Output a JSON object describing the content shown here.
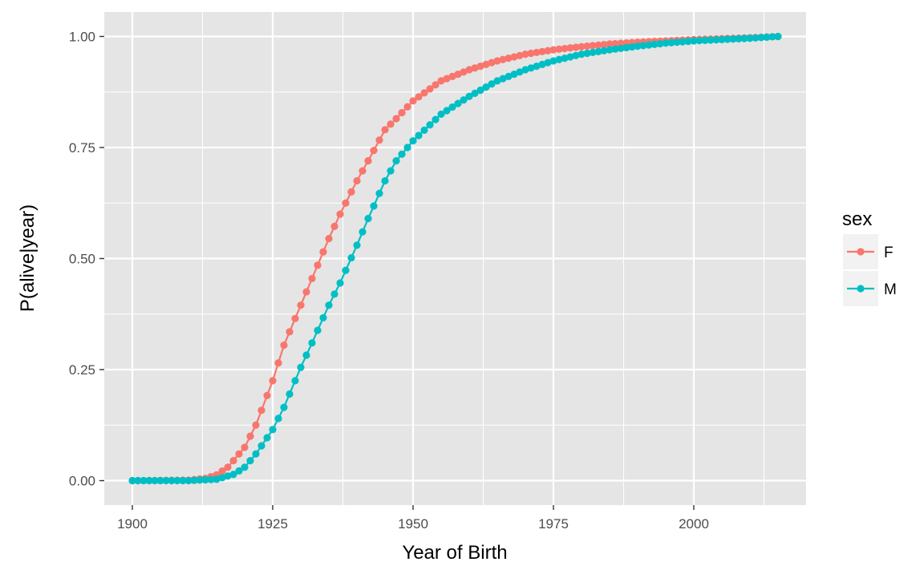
{
  "chart_data": {
    "type": "line",
    "title": "",
    "xlabel": "Year of Birth",
    "ylabel": "P(alive|year)",
    "xlim": [
      1895,
      2020
    ],
    "ylim": [
      -0.055,
      1.055
    ],
    "x_ticks": [
      1900,
      1925,
      1950,
      1975,
      2000
    ],
    "y_ticks": [
      0.0,
      0.25,
      0.5,
      0.75,
      1.0
    ],
    "x_tick_labels": [
      "1900",
      "1925",
      "1950",
      "1975",
      "2000"
    ],
    "y_tick_labels": [
      "0.00",
      "0.25",
      "0.50",
      "0.75",
      "1.00"
    ],
    "grid": true,
    "markers": true,
    "legend": {
      "title": "sex",
      "position": "right"
    },
    "x": {
      "start": 1900,
      "end": 2015,
      "step": 1
    },
    "series": [
      {
        "name": "F",
        "color": "#F8766D",
        "keypoints": [
          [
            1900,
            0.0
          ],
          [
            1910,
            0.001
          ],
          [
            1913,
            0.005
          ],
          [
            1915,
            0.013
          ],
          [
            1917,
            0.03
          ],
          [
            1920,
            0.075
          ],
          [
            1922,
            0.125
          ],
          [
            1925,
            0.225
          ],
          [
            1927,
            0.305
          ],
          [
            1930,
            0.395
          ],
          [
            1932,
            0.455
          ],
          [
            1935,
            0.545
          ],
          [
            1937,
            0.6
          ],
          [
            1940,
            0.675
          ],
          [
            1942,
            0.72
          ],
          [
            1945,
            0.79
          ],
          [
            1947,
            0.815
          ],
          [
            1950,
            0.855
          ],
          [
            1955,
            0.9
          ],
          [
            1960,
            0.925
          ],
          [
            1965,
            0.945
          ],
          [
            1970,
            0.96
          ],
          [
            1975,
            0.97
          ],
          [
            1980,
            0.977
          ],
          [
            1985,
            0.983
          ],
          [
            1990,
            0.987
          ],
          [
            1995,
            0.99
          ],
          [
            2000,
            0.993
          ],
          [
            2005,
            0.995
          ],
          [
            2010,
            0.997
          ],
          [
            2015,
            1.0
          ]
        ]
      },
      {
        "name": "M",
        "color": "#00BFC4",
        "keypoints": [
          [
            1900,
            0.0
          ],
          [
            1910,
            0.0
          ],
          [
            1915,
            0.003
          ],
          [
            1918,
            0.014
          ],
          [
            1920,
            0.03
          ],
          [
            1922,
            0.06
          ],
          [
            1925,
            0.115
          ],
          [
            1927,
            0.165
          ],
          [
            1930,
            0.255
          ],
          [
            1932,
            0.31
          ],
          [
            1935,
            0.395
          ],
          [
            1937,
            0.445
          ],
          [
            1940,
            0.53
          ],
          [
            1942,
            0.59
          ],
          [
            1945,
            0.675
          ],
          [
            1947,
            0.72
          ],
          [
            1950,
            0.765
          ],
          [
            1955,
            0.825
          ],
          [
            1960,
            0.865
          ],
          [
            1965,
            0.9
          ],
          [
            1970,
            0.925
          ],
          [
            1975,
            0.945
          ],
          [
            1980,
            0.96
          ],
          [
            1985,
            0.97
          ],
          [
            1990,
            0.978
          ],
          [
            1995,
            0.985
          ],
          [
            2000,
            0.99
          ],
          [
            2005,
            0.993
          ],
          [
            2010,
            0.996
          ],
          [
            2015,
            1.0
          ]
        ]
      }
    ]
  },
  "colors": {
    "panel_background": "#E5E5E5",
    "grid": "#FFFFFF",
    "text": "#4D4D4D"
  }
}
